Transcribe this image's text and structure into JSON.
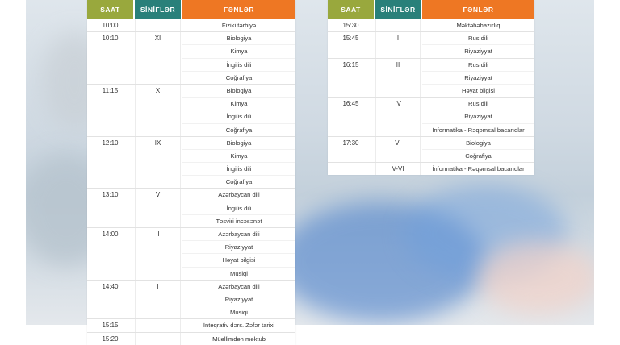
{
  "headers": {
    "time": "SAAT",
    "class": "SİNİFLƏR",
    "subjects": "FƏNLƏR"
  },
  "colors": {
    "time_header": "#99a83d",
    "class_header": "#29807a",
    "subjects_header": "#ee7723"
  },
  "left_schedule": [
    {
      "time": "10:00",
      "class": "",
      "subjects": [
        "Fiziki tərbiyə"
      ]
    },
    {
      "time": "10:10",
      "class": "XI",
      "subjects": [
        "Biologiya",
        "Kimya",
        "İngilis dili",
        "Coğrafiya"
      ]
    },
    {
      "time": "11:15",
      "class": "X",
      "subjects": [
        "Biologiya",
        "Kimya",
        "İngilis dili",
        "Coğrafiya"
      ]
    },
    {
      "time": "12:10",
      "class": "IX",
      "subjects": [
        "Biologiya",
        "Kimya",
        "İngilis dili",
        "Coğrafiya"
      ]
    },
    {
      "time": "13:10",
      "class": "V",
      "subjects": [
        "Azərbaycan dili",
        "İngilis dili",
        "Təsviri incəsənət"
      ]
    },
    {
      "time": "14:00",
      "class": "II",
      "subjects": [
        "Azərbaycan dili",
        "Riyaziyyat",
        "Həyat bilgisi",
        "Musiqi"
      ]
    },
    {
      "time": "14:40",
      "class": "I",
      "subjects": [
        "Azərbaycan dili",
        "Riyaziyyat",
        "Musiqi"
      ]
    },
    {
      "time": "15:15",
      "class": "",
      "subjects": [
        "İnteqrativ dərs. Zəfər tarixi"
      ]
    },
    {
      "time": "15:20",
      "class": "",
      "subjects": [
        "Müəllimdən məktub"
      ]
    }
  ],
  "right_schedule": [
    {
      "time": "15:30",
      "class": "",
      "subjects": [
        "Məktəbəhazırlıq"
      ]
    },
    {
      "time": "15:45",
      "class": "I",
      "subjects": [
        "Rus dili",
        "Riyaziyyat"
      ]
    },
    {
      "time": "16:15",
      "class": "II",
      "subjects": [
        "Rus dili",
        "Riyaziyyat",
        "Həyat bilgisi"
      ]
    },
    {
      "time": "16:45",
      "class": "IV",
      "subjects": [
        "Rus dili",
        "Riyaziyyat",
        "İnformatika - Rəqəmsal bacarıqlar"
      ]
    },
    {
      "time": "17:30",
      "class": "VI",
      "subjects": [
        "Biologiya",
        "Coğrafiya"
      ]
    },
    {
      "time": "",
      "class": "V-VI",
      "subjects": [
        "İnformatika - Rəqəmsal bacarıqlar"
      ]
    }
  ]
}
